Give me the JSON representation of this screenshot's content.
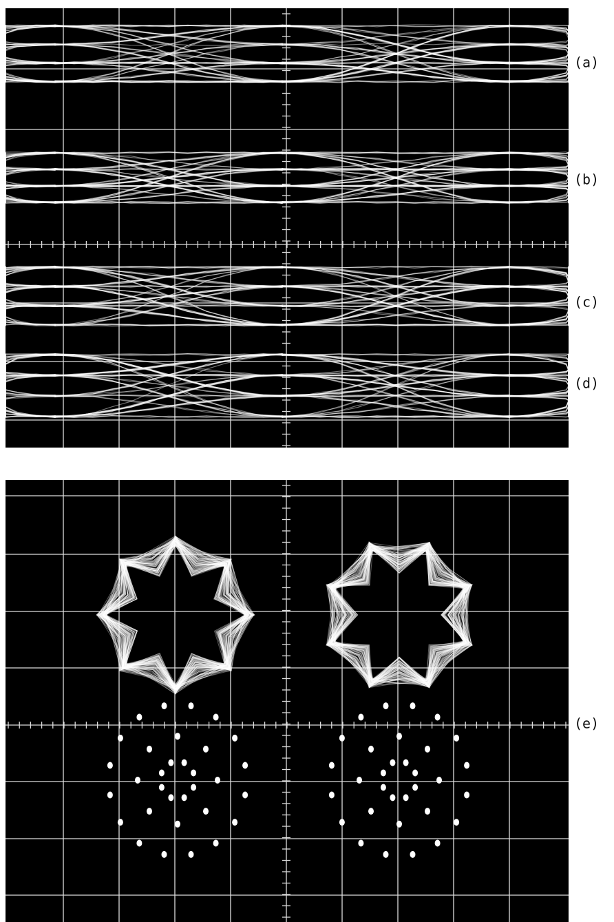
{
  "labels": [
    "(a)",
    "(b)",
    "(c)",
    "(d)",
    "(e)"
  ]
}
